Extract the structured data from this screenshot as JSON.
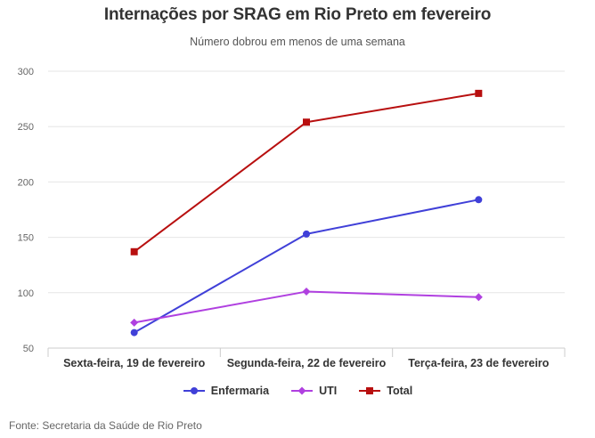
{
  "header": {
    "title": "Internações por SRAG em Rio Preto em fevereiro",
    "subtitle": "Número dobrou em menos de uma semana"
  },
  "footer": {
    "source": "Fonte: Secretaria da Saúde de Rio Preto"
  },
  "chart_data": {
    "type": "line",
    "title": "Internações por SRAG em Rio Preto em fevereiro",
    "subtitle": "Número dobrou em menos de uma semana",
    "xlabel": "",
    "ylabel": "",
    "categories": [
      "Sexta-feira, 19 de fevereiro",
      "Segunda-feira, 22 de fevereiro",
      "Terça-feira, 23 de fevereiro"
    ],
    "ylim": [
      50,
      300
    ],
    "yticks": [
      50,
      100,
      150,
      200,
      250,
      300
    ],
    "grid": true,
    "legend_position": "bottom",
    "series": [
      {
        "name": "Enfermaria",
        "values": [
          64,
          153,
          184
        ],
        "color": "#4040d8",
        "marker": "circle"
      },
      {
        "name": "UTI",
        "values": [
          73,
          101,
          96
        ],
        "color": "#b040e0",
        "marker": "diamond"
      },
      {
        "name": "Total",
        "values": [
          137,
          254,
          280
        ],
        "color": "#b80f0f",
        "marker": "square"
      }
    ]
  }
}
